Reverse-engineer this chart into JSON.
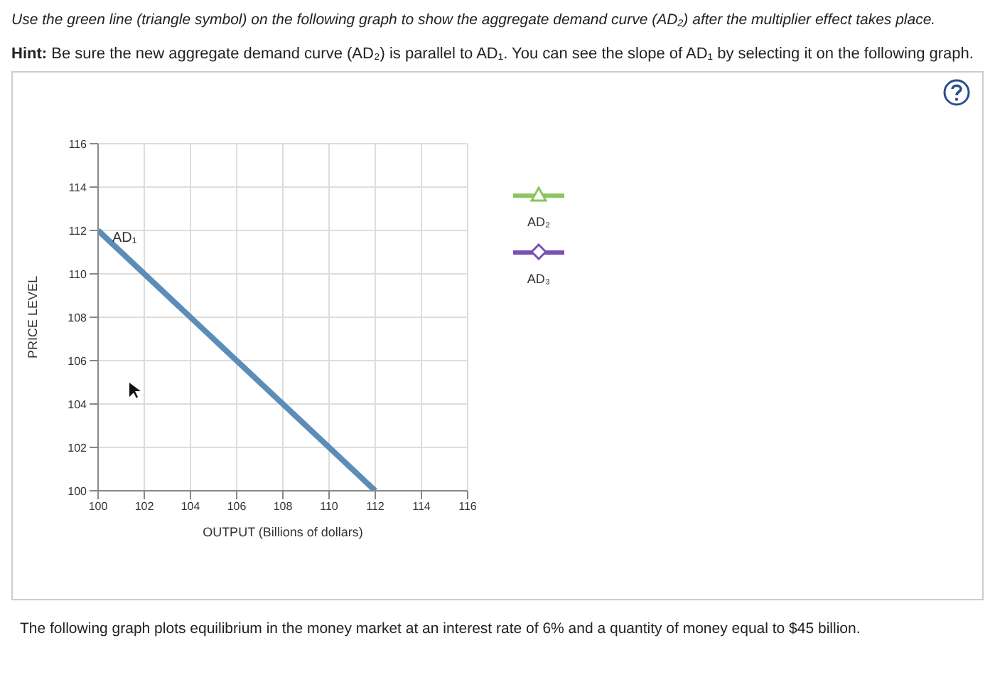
{
  "chart_data": {
    "type": "line",
    "title": "Use the green line (triangle symbol) on the following graph to show the aggregate demand curve (AD₂) after the multiplier effect takes place.",
    "subtitle": "Hint: Be sure the new aggregate demand curve (AD₂) is parallel to AD₁. You can see the slope of AD₁ by selecting it on the following graph.",
    "xlabel": "OUTPUT (Billions of dollars)",
    "ylabel": "PRICE LEVEL",
    "x": [
      100,
      112
    ],
    "series": [
      {
        "name": "AD₁",
        "color": "#5b8db8",
        "values": [
          112,
          100
        ],
        "marker": "none"
      },
      {
        "name": "AD₂",
        "color": "#8cc460",
        "values": [
          null,
          null
        ],
        "marker": "triangle"
      },
      {
        "name": "AD₃",
        "color": "#7a4fb0",
        "values": [
          null,
          null
        ],
        "marker": "diamond"
      }
    ],
    "xlim": [
      100,
      116
    ],
    "xticks": [
      100,
      102,
      104,
      106,
      108,
      110,
      112,
      114,
      116
    ],
    "ylim": [
      100,
      116
    ],
    "yticks": [
      100,
      102,
      104,
      106,
      108,
      110,
      112,
      114,
      116
    ],
    "grid": true,
    "legend": "right",
    "annotations": [
      "The following graph plots equilibrium in the money market at an interest rate of 6% and a quantity of money equal to $45 billion."
    ]
  }
}
